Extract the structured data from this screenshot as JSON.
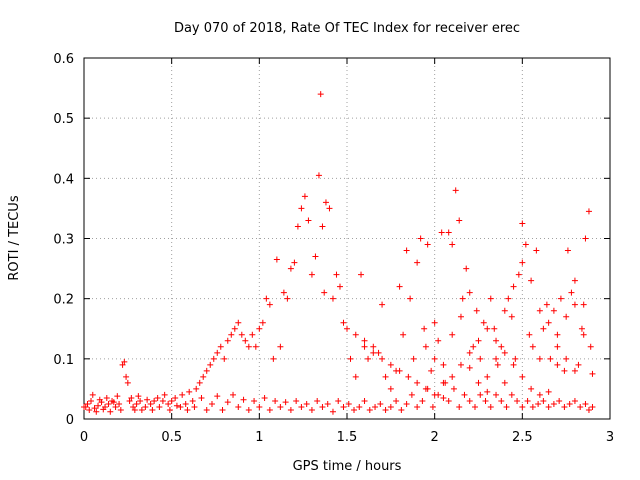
{
  "chart_data": {
    "type": "scatter",
    "title": "Day 070 of 2018, Rate Of TEC Index for receiver erec",
    "xlabel": "GPS time / hours",
    "ylabel": "ROTI / TECUs",
    "xlim": [
      0,
      3
    ],
    "ylim": [
      0,
      0.6
    ],
    "x_ticks": [
      0,
      0.5,
      1,
      1.5,
      2,
      2.5,
      3
    ],
    "x_tick_labels": [
      "0",
      "0.5",
      "1",
      "1.5",
      "2",
      "2.5",
      "3"
    ],
    "y_ticks": [
      0,
      0.1,
      0.2,
      0.3,
      0.4,
      0.5,
      0.6
    ],
    "y_tick_labels": [
      "0",
      "0.1",
      "0.2",
      "0.3",
      "0.4",
      "0.5",
      "0.6"
    ],
    "grid": true,
    "marker": "plus",
    "series": [
      {
        "name": "ROTI",
        "color": "#ff0000",
        "points": [
          [
            0.0,
            0.02
          ],
          [
            0.02,
            0.025
          ],
          [
            0.04,
            0.03
          ],
          [
            0.06,
            0.018
          ],
          [
            0.08,
            0.022
          ],
          [
            0.1,
            0.028
          ],
          [
            0.12,
            0.02
          ],
          [
            0.14,
            0.025
          ],
          [
            0.16,
            0.03
          ],
          [
            0.18,
            0.02
          ],
          [
            0.2,
            0.025
          ],
          [
            0.22,
            0.09
          ],
          [
            0.23,
            0.095
          ],
          [
            0.24,
            0.07
          ],
          [
            0.25,
            0.06
          ],
          [
            0.26,
            0.03
          ],
          [
            0.28,
            0.02
          ],
          [
            0.3,
            0.025
          ],
          [
            0.32,
            0.03
          ],
          [
            0.35,
            0.02
          ],
          [
            0.38,
            0.025
          ],
          [
            0.4,
            0.03
          ],
          [
            0.42,
            0.035
          ],
          [
            0.45,
            0.03
          ],
          [
            0.48,
            0.025
          ],
          [
            0.5,
            0.03
          ],
          [
            0.52,
            0.035
          ],
          [
            0.55,
            0.02
          ],
          [
            0.58,
            0.025
          ],
          [
            0.6,
            0.045
          ],
          [
            0.62,
            0.03
          ],
          [
            0.64,
            0.05
          ],
          [
            0.66,
            0.06
          ],
          [
            0.68,
            0.07
          ],
          [
            0.7,
            0.08
          ],
          [
            0.72,
            0.09
          ],
          [
            0.74,
            0.1
          ],
          [
            0.76,
            0.11
          ],
          [
            0.78,
            0.12
          ],
          [
            0.8,
            0.1
          ],
          [
            0.82,
            0.13
          ],
          [
            0.84,
            0.14
          ],
          [
            0.86,
            0.15
          ],
          [
            0.88,
            0.16
          ],
          [
            0.9,
            0.14
          ],
          [
            0.92,
            0.13
          ],
          [
            0.94,
            0.12
          ],
          [
            0.96,
            0.14
          ],
          [
            0.98,
            0.12
          ],
          [
            1.0,
            0.15
          ],
          [
            1.02,
            0.16
          ],
          [
            1.04,
            0.2
          ],
          [
            1.06,
            0.19
          ],
          [
            1.08,
            0.1
          ],
          [
            1.1,
            0.265
          ],
          [
            1.12,
            0.12
          ],
          [
            1.14,
            0.21
          ],
          [
            1.16,
            0.2
          ],
          [
            1.18,
            0.25
          ],
          [
            1.2,
            0.26
          ],
          [
            1.22,
            0.32
          ],
          [
            1.24,
            0.35
          ],
          [
            1.26,
            0.37
          ],
          [
            1.28,
            0.33
          ],
          [
            1.3,
            0.24
          ],
          [
            1.32,
            0.27
          ],
          [
            1.34,
            0.405
          ],
          [
            1.35,
            0.54
          ],
          [
            1.36,
            0.32
          ],
          [
            1.37,
            0.21
          ],
          [
            1.38,
            0.36
          ],
          [
            1.4,
            0.35
          ],
          [
            1.42,
            0.2
          ],
          [
            1.44,
            0.24
          ],
          [
            1.46,
            0.22
          ],
          [
            1.48,
            0.16
          ],
          [
            1.5,
            0.15
          ],
          [
            1.52,
            0.1
          ],
          [
            1.55,
            0.07
          ],
          [
            1.58,
            0.24
          ],
          [
            1.6,
            0.13
          ],
          [
            1.62,
            0.1
          ],
          [
            1.65,
            0.12
          ],
          [
            1.68,
            0.11
          ],
          [
            1.7,
            0.19
          ],
          [
            1.72,
            0.07
          ],
          [
            1.75,
            0.05
          ],
          [
            1.78,
            0.08
          ],
          [
            1.8,
            0.22
          ],
          [
            1.82,
            0.14
          ],
          [
            1.84,
            0.28
          ],
          [
            1.86,
            0.2
          ],
          [
            1.88,
            0.1
          ],
          [
            1.9,
            0.26
          ],
          [
            1.92,
            0.3
          ],
          [
            1.94,
            0.15
          ],
          [
            1.96,
            0.29
          ],
          [
            1.98,
            0.08
          ],
          [
            2.0,
            0.16
          ],
          [
            2.02,
            0.13
          ],
          [
            2.04,
            0.31
          ],
          [
            2.06,
            0.06
          ],
          [
            2.08,
            0.31
          ],
          [
            2.1,
            0.29
          ],
          [
            2.12,
            0.38
          ],
          [
            2.14,
            0.33
          ],
          [
            2.16,
            0.2
          ],
          [
            2.18,
            0.25
          ],
          [
            2.2,
            0.21
          ],
          [
            2.22,
            0.12
          ],
          [
            2.24,
            0.18
          ],
          [
            2.26,
            0.1
          ],
          [
            2.28,
            0.16
          ],
          [
            2.3,
            0.07
          ],
          [
            2.32,
            0.2
          ],
          [
            2.34,
            0.15
          ],
          [
            2.36,
            0.09
          ],
          [
            2.38,
            0.12
          ],
          [
            2.4,
            0.06
          ],
          [
            2.42,
            0.2
          ],
          [
            2.44,
            0.17
          ],
          [
            2.46,
            0.1
          ],
          [
            2.48,
            0.24
          ],
          [
            2.5,
            0.325
          ],
          [
            2.52,
            0.29
          ],
          [
            2.54,
            0.14
          ],
          [
            2.56,
            0.12
          ],
          [
            2.58,
            0.28
          ],
          [
            2.6,
            0.1
          ],
          [
            2.62,
            0.15
          ],
          [
            2.64,
            0.19
          ],
          [
            2.66,
            0.1
          ],
          [
            2.68,
            0.18
          ],
          [
            2.7,
            0.14
          ],
          [
            2.72,
            0.2
          ],
          [
            2.74,
            0.08
          ],
          [
            2.76,
            0.28
          ],
          [
            2.78,
            0.21
          ],
          [
            2.8,
            0.19
          ],
          [
            2.82,
            0.09
          ],
          [
            2.84,
            0.15
          ],
          [
            2.86,
            0.3
          ],
          [
            2.88,
            0.345
          ],
          [
            2.89,
            0.12
          ],
          [
            2.9,
            0.075
          ],
          [
            0.01,
            0.02
          ],
          [
            0.03,
            0.015
          ],
          [
            0.05,
            0.04
          ],
          [
            0.07,
            0.012
          ],
          [
            0.09,
            0.032
          ],
          [
            0.11,
            0.016
          ],
          [
            0.13,
            0.035
          ],
          [
            0.15,
            0.012
          ],
          [
            0.17,
            0.028
          ],
          [
            0.19,
            0.038
          ],
          [
            0.21,
            0.015
          ],
          [
            0.27,
            0.035
          ],
          [
            0.29,
            0.015
          ],
          [
            0.31,
            0.038
          ],
          [
            0.33,
            0.015
          ],
          [
            0.36,
            0.032
          ],
          [
            0.39,
            0.015
          ],
          [
            0.43,
            0.02
          ],
          [
            0.46,
            0.04
          ],
          [
            0.49,
            0.015
          ],
          [
            0.53,
            0.022
          ],
          [
            0.56,
            0.04
          ],
          [
            0.59,
            0.015
          ],
          [
            0.63,
            0.02
          ],
          [
            0.67,
            0.035
          ],
          [
            0.7,
            0.015
          ],
          [
            0.73,
            0.025
          ],
          [
            0.76,
            0.038
          ],
          [
            0.79,
            0.015
          ],
          [
            0.82,
            0.028
          ],
          [
            0.85,
            0.04
          ],
          [
            0.88,
            0.02
          ],
          [
            0.91,
            0.032
          ],
          [
            0.94,
            0.015
          ],
          [
            0.97,
            0.03
          ],
          [
            1.0,
            0.02
          ],
          [
            1.03,
            0.035
          ],
          [
            1.06,
            0.015
          ],
          [
            1.09,
            0.03
          ],
          [
            1.12,
            0.02
          ],
          [
            1.15,
            0.028
          ],
          [
            1.18,
            0.015
          ],
          [
            1.21,
            0.03
          ],
          [
            1.24,
            0.02
          ],
          [
            1.27,
            0.025
          ],
          [
            1.3,
            0.015
          ],
          [
            1.33,
            0.03
          ],
          [
            1.36,
            0.02
          ],
          [
            1.39,
            0.025
          ],
          [
            1.42,
            0.012
          ],
          [
            1.45,
            0.03
          ],
          [
            1.48,
            0.02
          ],
          [
            1.51,
            0.025
          ],
          [
            1.54,
            0.015
          ],
          [
            1.57,
            0.02
          ],
          [
            1.6,
            0.03
          ],
          [
            1.63,
            0.015
          ],
          [
            1.66,
            0.02
          ],
          [
            1.69,
            0.025
          ],
          [
            1.72,
            0.015
          ],
          [
            1.75,
            0.02
          ],
          [
            1.78,
            0.03
          ],
          [
            1.81,
            0.015
          ],
          [
            1.84,
            0.025
          ],
          [
            1.87,
            0.04
          ],
          [
            1.9,
            0.02
          ],
          [
            1.93,
            0.03
          ],
          [
            1.96,
            0.05
          ],
          [
            1.99,
            0.02
          ],
          [
            2.02,
            0.04
          ],
          [
            2.05,
            0.06
          ],
          [
            2.08,
            0.03
          ],
          [
            2.11,
            0.05
          ],
          [
            2.14,
            0.02
          ],
          [
            2.17,
            0.04
          ],
          [
            2.2,
            0.03
          ],
          [
            2.23,
            0.02
          ],
          [
            2.26,
            0.04
          ],
          [
            2.29,
            0.03
          ],
          [
            2.32,
            0.02
          ],
          [
            2.35,
            0.04
          ],
          [
            2.38,
            0.03
          ],
          [
            2.41,
            0.02
          ],
          [
            2.44,
            0.04
          ],
          [
            2.47,
            0.03
          ],
          [
            2.5,
            0.02
          ],
          [
            2.53,
            0.03
          ],
          [
            2.56,
            0.02
          ],
          [
            2.59,
            0.025
          ],
          [
            2.62,
            0.03
          ],
          [
            2.65,
            0.02
          ],
          [
            2.68,
            0.025
          ],
          [
            2.71,
            0.03
          ],
          [
            2.74,
            0.02
          ],
          [
            2.77,
            0.025
          ],
          [
            2.8,
            0.03
          ],
          [
            2.83,
            0.02
          ],
          [
            2.86,
            0.025
          ],
          [
            2.88,
            0.015
          ],
          [
            2.9,
            0.02
          ],
          [
            1.55,
            0.14
          ],
          [
            1.6,
            0.12
          ],
          [
            1.65,
            0.11
          ],
          [
            1.7,
            0.1
          ],
          [
            1.75,
            0.09
          ],
          [
            1.8,
            0.08
          ],
          [
            1.85,
            0.07
          ],
          [
            1.9,
            0.06
          ],
          [
            1.95,
            0.05
          ],
          [
            2.0,
            0.04
          ],
          [
            2.05,
            0.035
          ],
          [
            2.1,
            0.07
          ],
          [
            2.15,
            0.09
          ],
          [
            2.2,
            0.11
          ],
          [
            2.25,
            0.13
          ],
          [
            2.3,
            0.15
          ],
          [
            2.35,
            0.13
          ],
          [
            2.4,
            0.11
          ],
          [
            2.45,
            0.09
          ],
          [
            2.5,
            0.07
          ],
          [
            2.55,
            0.05
          ],
          [
            2.6,
            0.04
          ],
          [
            2.65,
            0.045
          ],
          [
            2.7,
            0.12
          ],
          [
            2.75,
            0.1
          ],
          [
            2.8,
            0.08
          ],
          [
            2.85,
            0.14
          ],
          [
            1.95,
            0.12
          ],
          [
            2.0,
            0.1
          ],
          [
            2.05,
            0.09
          ],
          [
            2.1,
            0.14
          ],
          [
            2.15,
            0.17
          ],
          [
            2.2,
            0.085
          ],
          [
            2.25,
            0.06
          ],
          [
            2.3,
            0.045
          ],
          [
            2.35,
            0.1
          ],
          [
            2.4,
            0.18
          ],
          [
            2.45,
            0.22
          ],
          [
            2.5,
            0.26
          ],
          [
            2.55,
            0.23
          ],
          [
            2.6,
            0.18
          ],
          [
            2.65,
            0.16
          ],
          [
            2.7,
            0.09
          ],
          [
            2.75,
            0.17
          ],
          [
            2.8,
            0.23
          ],
          [
            2.85,
            0.19
          ]
        ]
      }
    ]
  }
}
